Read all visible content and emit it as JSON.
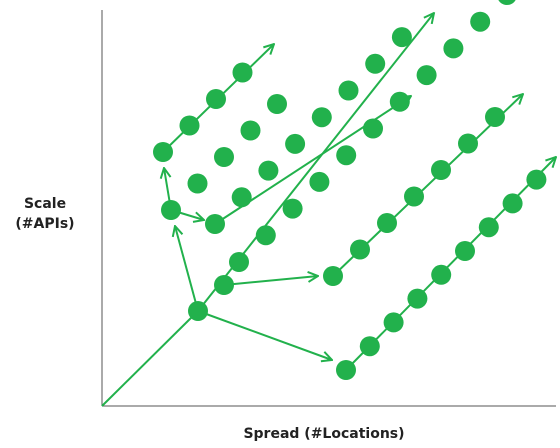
{
  "labels": {
    "y_axis_line1": "Scale",
    "y_axis_line2": "(#APIs)",
    "x_axis": "Spread (#Locations)"
  },
  "colors": {
    "node": "#22b14c",
    "line": "#22b14c",
    "axis": "#555555"
  },
  "growth_paths": [
    {
      "name": "origin-stem",
      "nodes": 0
    },
    {
      "name": "bottom-diagonal",
      "nodes": 9
    },
    {
      "name": "middle-low-diagonal",
      "nodes": 5
    },
    {
      "name": "long-central-diagonal",
      "nodes": 11
    },
    {
      "name": "upper-middle-diagonal",
      "nodes": 8
    },
    {
      "name": "upper-left-diagonal",
      "nodes": 4
    }
  ]
}
